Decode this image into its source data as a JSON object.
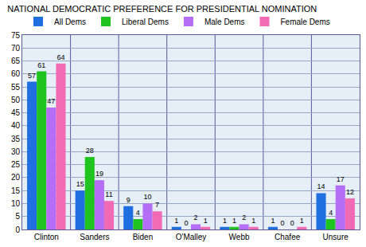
{
  "chart_data": {
    "type": "bar",
    "title": "NATIONAL DEMOCRATIC PREFERENCE FOR PRESIDENTIAL NOMINATION",
    "categories": [
      "Clinton",
      "Sanders",
      "Biden",
      "O'Malley",
      "Webb",
      "Chafee",
      "Unsure"
    ],
    "series": [
      {
        "name": "All Dems",
        "color": "#1f6fe0",
        "values": [
          57,
          15,
          9,
          1,
          1,
          1,
          14
        ]
      },
      {
        "name": "Liberal Dems",
        "color": "#1fc41f",
        "values": [
          61,
          28,
          4,
          0,
          1,
          0,
          4
        ]
      },
      {
        "name": "Male Dems",
        "color": "#b46ef5",
        "values": [
          47,
          19,
          10,
          2,
          2,
          0,
          17
        ]
      },
      {
        "name": "Female Dems",
        "color": "#f26ab4",
        "values": [
          64,
          11,
          7,
          1,
          1,
          1,
          12
        ]
      }
    ],
    "ylim": [
      0,
      75
    ],
    "yticks": [
      0,
      5,
      10,
      15,
      20,
      25,
      30,
      35,
      40,
      45,
      50,
      55,
      60,
      65,
      70,
      75
    ],
    "grid": true,
    "legend": "top-left",
    "data_labels": true
  }
}
